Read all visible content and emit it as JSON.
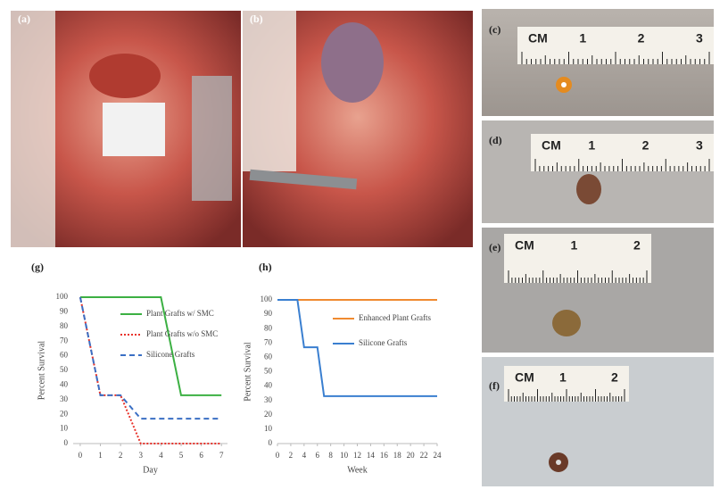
{
  "panels": [
    {
      "label": "(a)"
    },
    {
      "label": "(b)"
    },
    {
      "label": "(c)",
      "ruler": [
        "CM",
        "1",
        "2",
        "3"
      ]
    },
    {
      "label": "(d)",
      "ruler": [
        "CM",
        "1",
        "2",
        "3"
      ]
    },
    {
      "label": "(e)",
      "ruler": [
        "CM",
        "1",
        "2"
      ]
    },
    {
      "label": "(f)",
      "ruler": [
        "CM",
        "1",
        "2"
      ]
    }
  ],
  "chart_data": [
    {
      "type": "line",
      "label": "(g)",
      "x_label": "Day",
      "y_label": "Percent Survival",
      "xlim": [
        -0.35,
        7.3
      ],
      "xticks": [
        0,
        1,
        2,
        3,
        4,
        5,
        6,
        7
      ],
      "ylim": [
        0,
        100
      ],
      "yticks": [
        0,
        10,
        20,
        30,
        40,
        50,
        60,
        70,
        80,
        90,
        100
      ],
      "legend": "upper right",
      "series": [
        {
          "name": "Plant Grafts w/ SMC",
          "color": "#3cb043",
          "style": "solid",
          "x": [
            0,
            1,
            2,
            3,
            4,
            5,
            6,
            7
          ],
          "values": [
            100,
            100,
            100,
            100,
            100,
            33,
            33,
            33
          ]
        },
        {
          "name": "Plant Grafts w/o SMC",
          "color": "#e8322a",
          "style": "dotted",
          "x": [
            0,
            1,
            2,
            3,
            4,
            5,
            6,
            7
          ],
          "values": [
            100,
            33,
            33,
            0,
            0,
            0,
            0,
            0
          ]
        },
        {
          "name": "Silicone Grafts",
          "color": "#3a6fc4",
          "style": "dashed",
          "x": [
            0,
            1,
            2,
            3,
            4,
            5,
            6,
            7
          ],
          "values": [
            100,
            33,
            33,
            17,
            17,
            17,
            17,
            17
          ]
        }
      ]
    },
    {
      "type": "line",
      "label": "(h)",
      "x_label": "Week",
      "y_label": "Percent Survival",
      "xlim": [
        0,
        24
      ],
      "xticks": [
        0,
        2,
        4,
        6,
        8,
        10,
        12,
        14,
        16,
        18,
        20,
        22,
        24
      ],
      "ylim": [
        0,
        100
      ],
      "yticks": [
        0,
        10,
        20,
        30,
        40,
        50,
        60,
        70,
        80,
        90,
        100
      ],
      "legend": "upper right",
      "series": [
        {
          "name": "Enhanced Plant Grafts",
          "color": "#f08a30",
          "style": "solid",
          "x": [
            0,
            24
          ],
          "values": [
            100,
            100
          ]
        },
        {
          "name": "Silicone Grafts",
          "color": "#3a7fd0",
          "style": "solid",
          "x": [
            0,
            3,
            4,
            6,
            7,
            24
          ],
          "values": [
            100,
            100,
            67,
            67,
            33,
            33
          ]
        }
      ]
    }
  ]
}
